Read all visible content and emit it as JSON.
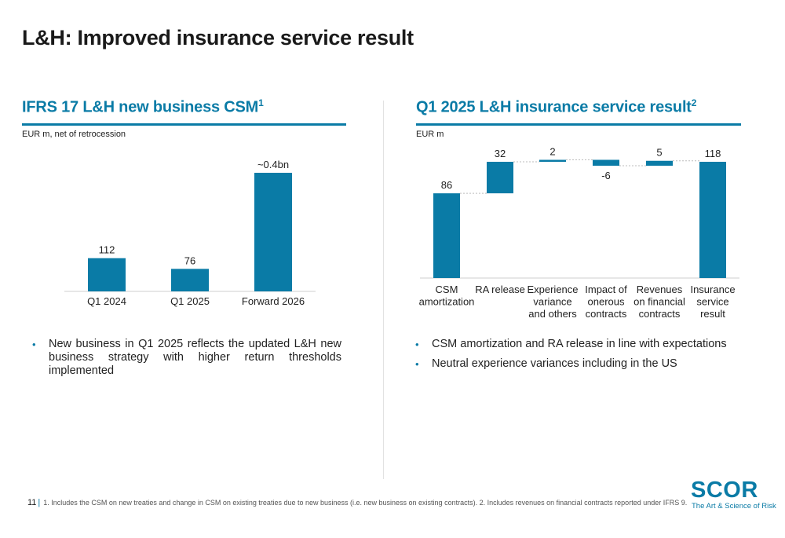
{
  "title": "L&H: Improved insurance service result",
  "left_panel": {
    "title": "IFRS 17 L&H new business CSM",
    "title_sup": "1",
    "unit": "EUR m, net of retrocession",
    "bullets": [
      "New business in Q1 2025 reflects the updated L&H new business strategy with higher return thresholds implemented"
    ]
  },
  "right_panel": {
    "title": "Q1 2025 L&H insurance service result",
    "title_sup": "2",
    "unit": "EUR m",
    "bullets": [
      "CSM amortization and RA release in line with expectations",
      "Neutral experience variances including in the US"
    ]
  },
  "chart_data": [
    {
      "type": "bar",
      "categories": [
        "Q1 2024",
        "Q1 2025",
        "Forward 2026"
      ],
      "values": [
        112,
        76,
        400
      ],
      "data_labels": [
        "112",
        "76",
        "~0.4bn"
      ],
      "color": "#0a7ba6"
    },
    {
      "type": "waterfall",
      "categories": [
        "CSM amortization",
        "RA release",
        "Experience variance and others",
        "Impact of onerous contracts",
        "Revenues on financial contracts",
        "Insurance service result"
      ],
      "category_lines": [
        [
          "CSM",
          "amortization"
        ],
        [
          "RA release"
        ],
        [
          "Experience",
          "variance",
          "and others"
        ],
        [
          "Impact of",
          "onerous",
          "contracts"
        ],
        [
          "Revenues",
          "on financial",
          "contracts"
        ],
        [
          "Insurance",
          "service",
          "result"
        ]
      ],
      "values": [
        86,
        32,
        2,
        -6,
        5,
        118
      ],
      "bar_kind": [
        "total",
        "delta",
        "delta",
        "delta",
        "delta",
        "total"
      ],
      "data_labels": [
        "86",
        "32",
        "2",
        "-6",
        "5",
        "118"
      ],
      "color": "#0a7ba6"
    }
  ],
  "footer": {
    "page_number": "11",
    "separator": "|",
    "notes": "1. Includes the CSM on new treaties and change in CSM on existing treaties due to new business (i.e. new business on existing contracts). 2. Includes revenues on financial contracts reported under IFRS 9."
  },
  "logo": {
    "word": "SCOR",
    "tagline": "The Art & Science of Risk"
  }
}
